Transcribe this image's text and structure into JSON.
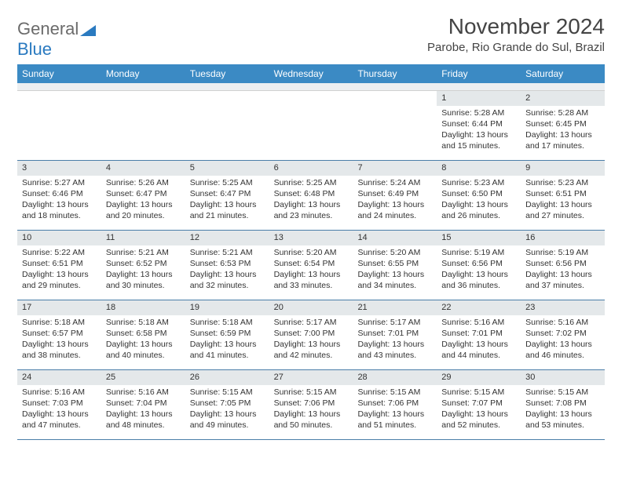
{
  "logo": {
    "text1": "General",
    "text2": "Blue"
  },
  "title": "November 2024",
  "location": "Parobe, Rio Grande do Sul, Brazil",
  "colors": {
    "header_bg": "#3b8ac4",
    "daynum_bg": "#e4e8ea",
    "row_border": "#4a7ea8",
    "logo_gray": "#6b6b6b",
    "logo_blue": "#2a7ac0"
  },
  "dow": [
    "Sunday",
    "Monday",
    "Tuesday",
    "Wednesday",
    "Thursday",
    "Friday",
    "Saturday"
  ],
  "weeks": [
    [
      {
        "n": "",
        "sr": "",
        "ss": "",
        "dl": ""
      },
      {
        "n": "",
        "sr": "",
        "ss": "",
        "dl": ""
      },
      {
        "n": "",
        "sr": "",
        "ss": "",
        "dl": ""
      },
      {
        "n": "",
        "sr": "",
        "ss": "",
        "dl": ""
      },
      {
        "n": "",
        "sr": "",
        "ss": "",
        "dl": ""
      },
      {
        "n": "1",
        "sr": "Sunrise: 5:28 AM",
        "ss": "Sunset: 6:44 PM",
        "dl": "Daylight: 13 hours and 15 minutes."
      },
      {
        "n": "2",
        "sr": "Sunrise: 5:28 AM",
        "ss": "Sunset: 6:45 PM",
        "dl": "Daylight: 13 hours and 17 minutes."
      }
    ],
    [
      {
        "n": "3",
        "sr": "Sunrise: 5:27 AM",
        "ss": "Sunset: 6:46 PM",
        "dl": "Daylight: 13 hours and 18 minutes."
      },
      {
        "n": "4",
        "sr": "Sunrise: 5:26 AM",
        "ss": "Sunset: 6:47 PM",
        "dl": "Daylight: 13 hours and 20 minutes."
      },
      {
        "n": "5",
        "sr": "Sunrise: 5:25 AM",
        "ss": "Sunset: 6:47 PM",
        "dl": "Daylight: 13 hours and 21 minutes."
      },
      {
        "n": "6",
        "sr": "Sunrise: 5:25 AM",
        "ss": "Sunset: 6:48 PM",
        "dl": "Daylight: 13 hours and 23 minutes."
      },
      {
        "n": "7",
        "sr": "Sunrise: 5:24 AM",
        "ss": "Sunset: 6:49 PM",
        "dl": "Daylight: 13 hours and 24 minutes."
      },
      {
        "n": "8",
        "sr": "Sunrise: 5:23 AM",
        "ss": "Sunset: 6:50 PM",
        "dl": "Daylight: 13 hours and 26 minutes."
      },
      {
        "n": "9",
        "sr": "Sunrise: 5:23 AM",
        "ss": "Sunset: 6:51 PM",
        "dl": "Daylight: 13 hours and 27 minutes."
      }
    ],
    [
      {
        "n": "10",
        "sr": "Sunrise: 5:22 AM",
        "ss": "Sunset: 6:51 PM",
        "dl": "Daylight: 13 hours and 29 minutes."
      },
      {
        "n": "11",
        "sr": "Sunrise: 5:21 AM",
        "ss": "Sunset: 6:52 PM",
        "dl": "Daylight: 13 hours and 30 minutes."
      },
      {
        "n": "12",
        "sr": "Sunrise: 5:21 AM",
        "ss": "Sunset: 6:53 PM",
        "dl": "Daylight: 13 hours and 32 minutes."
      },
      {
        "n": "13",
        "sr": "Sunrise: 5:20 AM",
        "ss": "Sunset: 6:54 PM",
        "dl": "Daylight: 13 hours and 33 minutes."
      },
      {
        "n": "14",
        "sr": "Sunrise: 5:20 AM",
        "ss": "Sunset: 6:55 PM",
        "dl": "Daylight: 13 hours and 34 minutes."
      },
      {
        "n": "15",
        "sr": "Sunrise: 5:19 AM",
        "ss": "Sunset: 6:56 PM",
        "dl": "Daylight: 13 hours and 36 minutes."
      },
      {
        "n": "16",
        "sr": "Sunrise: 5:19 AM",
        "ss": "Sunset: 6:56 PM",
        "dl": "Daylight: 13 hours and 37 minutes."
      }
    ],
    [
      {
        "n": "17",
        "sr": "Sunrise: 5:18 AM",
        "ss": "Sunset: 6:57 PM",
        "dl": "Daylight: 13 hours and 38 minutes."
      },
      {
        "n": "18",
        "sr": "Sunrise: 5:18 AM",
        "ss": "Sunset: 6:58 PM",
        "dl": "Daylight: 13 hours and 40 minutes."
      },
      {
        "n": "19",
        "sr": "Sunrise: 5:18 AM",
        "ss": "Sunset: 6:59 PM",
        "dl": "Daylight: 13 hours and 41 minutes."
      },
      {
        "n": "20",
        "sr": "Sunrise: 5:17 AM",
        "ss": "Sunset: 7:00 PM",
        "dl": "Daylight: 13 hours and 42 minutes."
      },
      {
        "n": "21",
        "sr": "Sunrise: 5:17 AM",
        "ss": "Sunset: 7:01 PM",
        "dl": "Daylight: 13 hours and 43 minutes."
      },
      {
        "n": "22",
        "sr": "Sunrise: 5:16 AM",
        "ss": "Sunset: 7:01 PM",
        "dl": "Daylight: 13 hours and 44 minutes."
      },
      {
        "n": "23",
        "sr": "Sunrise: 5:16 AM",
        "ss": "Sunset: 7:02 PM",
        "dl": "Daylight: 13 hours and 46 minutes."
      }
    ],
    [
      {
        "n": "24",
        "sr": "Sunrise: 5:16 AM",
        "ss": "Sunset: 7:03 PM",
        "dl": "Daylight: 13 hours and 47 minutes."
      },
      {
        "n": "25",
        "sr": "Sunrise: 5:16 AM",
        "ss": "Sunset: 7:04 PM",
        "dl": "Daylight: 13 hours and 48 minutes."
      },
      {
        "n": "26",
        "sr": "Sunrise: 5:15 AM",
        "ss": "Sunset: 7:05 PM",
        "dl": "Daylight: 13 hours and 49 minutes."
      },
      {
        "n": "27",
        "sr": "Sunrise: 5:15 AM",
        "ss": "Sunset: 7:06 PM",
        "dl": "Daylight: 13 hours and 50 minutes."
      },
      {
        "n": "28",
        "sr": "Sunrise: 5:15 AM",
        "ss": "Sunset: 7:06 PM",
        "dl": "Daylight: 13 hours and 51 minutes."
      },
      {
        "n": "29",
        "sr": "Sunrise: 5:15 AM",
        "ss": "Sunset: 7:07 PM",
        "dl": "Daylight: 13 hours and 52 minutes."
      },
      {
        "n": "30",
        "sr": "Sunrise: 5:15 AM",
        "ss": "Sunset: 7:08 PM",
        "dl": "Daylight: 13 hours and 53 minutes."
      }
    ]
  ]
}
